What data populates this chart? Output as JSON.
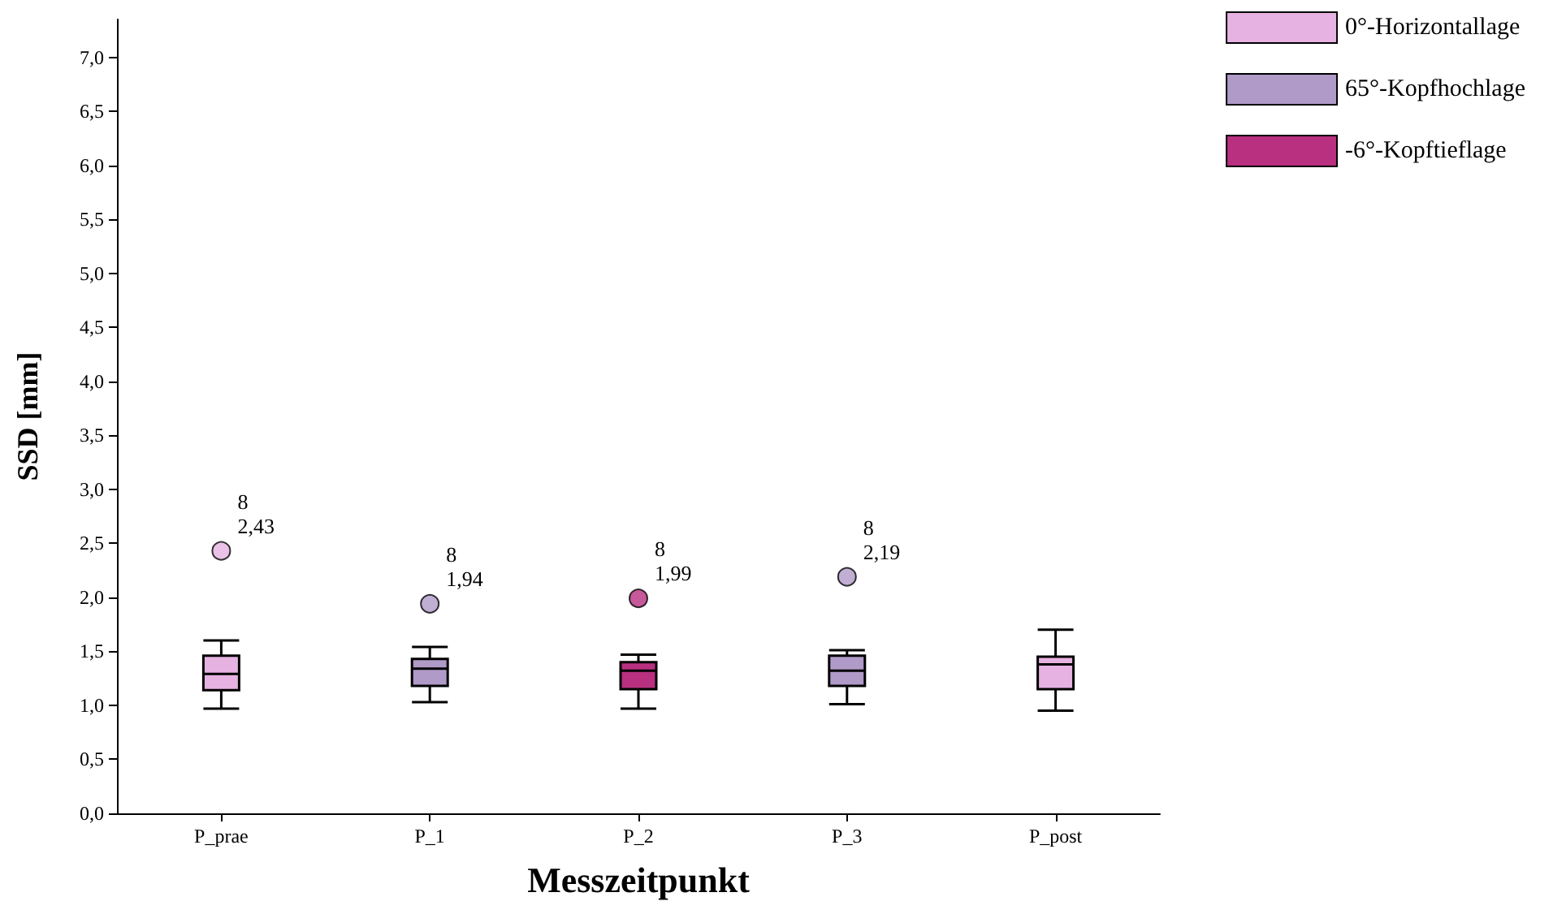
{
  "chart_data": {
    "type": "box",
    "xlabel": "Messzeitpunkt",
    "ylabel": "SSD [mm]",
    "categories": [
      "P_prae",
      "P_1",
      "P_2",
      "P_3",
      "P_post"
    ],
    "series": [
      {
        "name": "0°-Horizontallage",
        "color": "#e6b2e2",
        "boxes": [
          {
            "low": 0.97,
            "q1": 1.14,
            "median": 1.29,
            "q3": 1.46,
            "high": 1.6,
            "outliers": [
              2.43
            ]
          },
          null,
          null,
          null,
          {
            "low": 0.95,
            "q1": 1.15,
            "median": 1.38,
            "q3": 1.45,
            "high": 1.7
          }
        ]
      },
      {
        "name": "65°-Kopfhochlage",
        "color": "#b09ac8",
        "boxes": [
          null,
          {
            "low": 1.03,
            "q1": 1.18,
            "median": 1.34,
            "q3": 1.43,
            "high": 1.54,
            "outliers": [
              1.94
            ]
          },
          null,
          {
            "low": 1.01,
            "q1": 1.18,
            "median": 1.32,
            "q3": 1.46,
            "high": 1.51,
            "outliers": [
              2.19
            ]
          },
          null
        ]
      },
      {
        "name": "-6°-Kopftieflage",
        "color": "#b8307f",
        "boxes": [
          null,
          null,
          {
            "low": 0.97,
            "q1": 1.15,
            "median": 1.32,
            "q3": 1.4,
            "high": 1.47,
            "outliers": [
              1.99
            ]
          },
          null,
          null
        ]
      }
    ],
    "annotations": [
      "8\n2,43",
      "8\n1,94",
      "8\n1,99",
      "8\n2,19"
    ],
    "ylim": [
      0,
      7.35
    ],
    "yticks": [
      {
        "value": 0,
        "label": "0,0"
      },
      {
        "value": 0.5,
        "label": "0,5"
      },
      {
        "value": 1,
        "label": "1,0"
      },
      {
        "value": 1.5,
        "label": "1,5"
      },
      {
        "value": 2,
        "label": "2,0"
      },
      {
        "value": 2.5,
        "label": "2,5"
      },
      {
        "value": 3,
        "label": "3,0"
      },
      {
        "value": 3.5,
        "label": "3,5"
      },
      {
        "value": 4,
        "label": "4,0"
      },
      {
        "value": 4.5,
        "label": "4,5"
      },
      {
        "value": 5,
        "label": "5,0"
      },
      {
        "value": 5.5,
        "label": "5,5"
      },
      {
        "value": 6,
        "label": "6,0"
      },
      {
        "value": 6.5,
        "label": "6,5"
      },
      {
        "value": 7,
        "label": "7,0"
      }
    ],
    "grid": false,
    "legend": "top right"
  }
}
